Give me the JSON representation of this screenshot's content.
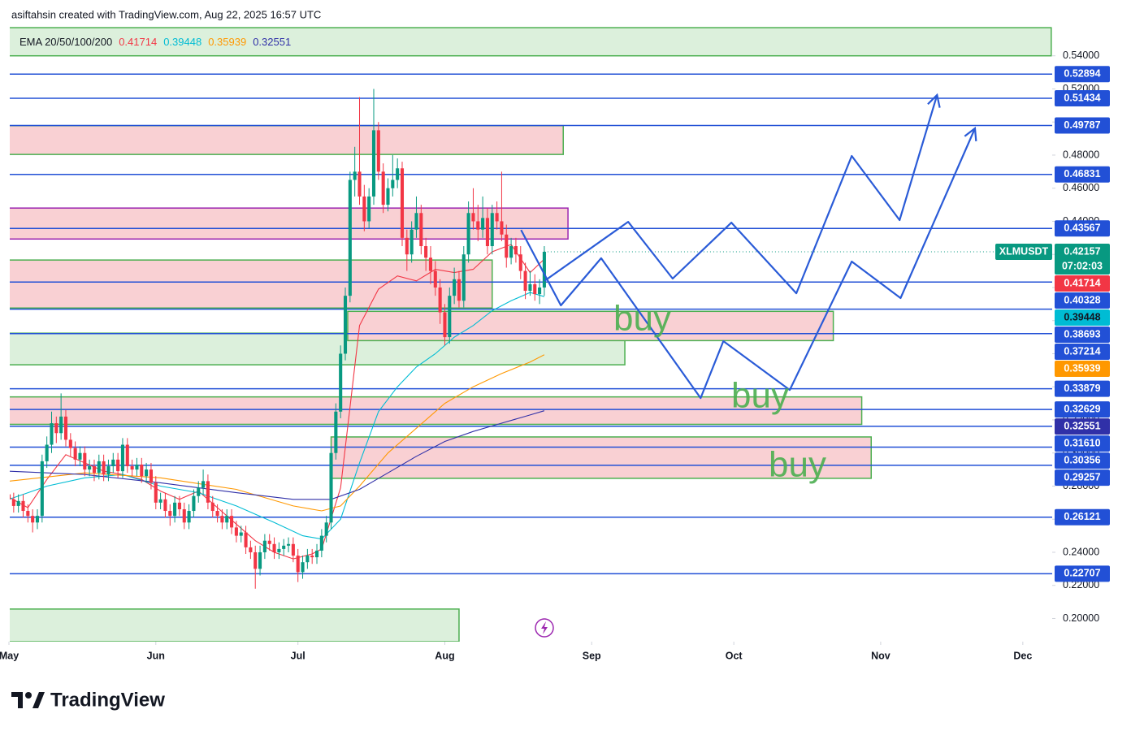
{
  "header": "asiftahsin created with TradingView.com, Aug 22, 2025 16:57 UTC",
  "logo": "TradingView",
  "chart_data": {
    "type": "candlestick",
    "symbol": "XLMUSDT",
    "countdown": "07:02:03",
    "indicator": "EMA 20/50/100/200",
    "color_up": "#089981",
    "color_down": "#f23645",
    "open": [
      0.275,
      0.272,
      0.268,
      0.271,
      0.265,
      0.262,
      0.258,
      0.262,
      0.295,
      0.305,
      0.318,
      0.312,
      0.322,
      0.308,
      0.303,
      0.296,
      0.3,
      0.29,
      0.292,
      0.288,
      0.295,
      0.287,
      0.292,
      0.296,
      0.289,
      0.305,
      0.292,
      0.29,
      0.293,
      0.286,
      0.29,
      0.282,
      0.27,
      0.272,
      0.265,
      0.262,
      0.27,
      0.266,
      0.258,
      0.265,
      0.274,
      0.279,
      0.283,
      0.27,
      0.265,
      0.262,
      0.258,
      0.262,
      0.255,
      0.25,
      0.252,
      0.243,
      0.24,
      0.23,
      0.24,
      0.247,
      0.245,
      0.24,
      0.242,
      0.244,
      0.245,
      0.238,
      0.228,
      0.234,
      0.238,
      0.237,
      0.241,
      0.25,
      0.258,
      0.3,
      0.325,
      0.36,
      0.395,
      0.465,
      0.47,
      0.455,
      0.44,
      0.455,
      0.495,
      0.47,
      0.45,
      0.46,
      0.465,
      0.472,
      0.43,
      0.42,
      0.435,
      0.445,
      0.425,
      0.418,
      0.41,
      0.4,
      0.385,
      0.37,
      0.395,
      0.405,
      0.392,
      0.42,
      0.445,
      0.44,
      0.435,
      0.442,
      0.425,
      0.445,
      0.44,
      0.432,
      0.418,
      0.425,
      0.42,
      0.41,
      0.398,
      0.402,
      0.396,
      0.4
    ],
    "high": [
      0.279,
      0.276,
      0.275,
      0.275,
      0.269,
      0.266,
      0.266,
      0.299,
      0.31,
      0.325,
      0.322,
      0.336,
      0.326,
      0.312,
      0.307,
      0.304,
      0.304,
      0.296,
      0.296,
      0.299,
      0.299,
      0.296,
      0.3,
      0.3,
      0.309,
      0.309,
      0.296,
      0.297,
      0.297,
      0.294,
      0.294,
      0.286,
      0.276,
      0.276,
      0.269,
      0.274,
      0.274,
      0.27,
      0.269,
      0.278,
      0.283,
      0.29,
      0.287,
      0.274,
      0.269,
      0.266,
      0.266,
      0.266,
      0.259,
      0.256,
      0.256,
      0.247,
      0.244,
      0.244,
      0.251,
      0.251,
      0.249,
      0.246,
      0.248,
      0.249,
      0.249,
      0.242,
      0.238,
      0.242,
      0.242,
      0.245,
      0.254,
      0.262,
      0.304,
      0.33,
      0.365,
      0.4,
      0.47,
      0.485,
      0.515,
      0.462,
      0.46,
      0.52,
      0.5,
      0.475,
      0.466,
      0.48,
      0.478,
      0.476,
      0.435,
      0.44,
      0.455,
      0.45,
      0.43,
      0.425,
      0.416,
      0.405,
      0.39,
      0.4,
      0.412,
      0.41,
      0.425,
      0.452,
      0.46,
      0.45,
      0.455,
      0.448,
      0.45,
      0.452,
      0.47,
      0.438,
      0.43,
      0.43,
      0.425,
      0.415,
      0.41,
      0.408,
      0.405,
      0.425
    ],
    "low": [
      0.268,
      0.264,
      0.264,
      0.261,
      0.258,
      0.252,
      0.254,
      0.258,
      0.291,
      0.3,
      0.306,
      0.308,
      0.304,
      0.298,
      0.292,
      0.292,
      0.286,
      0.286,
      0.283,
      0.284,
      0.283,
      0.283,
      0.288,
      0.285,
      0.285,
      0.288,
      0.286,
      0.286,
      0.282,
      0.282,
      0.278,
      0.266,
      0.266,
      0.261,
      0.256,
      0.258,
      0.262,
      0.254,
      0.254,
      0.261,
      0.27,
      0.275,
      0.266,
      0.261,
      0.258,
      0.254,
      0.254,
      0.251,
      0.246,
      0.246,
      0.239,
      0.236,
      0.218,
      0.226,
      0.236,
      0.241,
      0.236,
      0.236,
      0.238,
      0.24,
      0.234,
      0.222,
      0.224,
      0.23,
      0.233,
      0.233,
      0.237,
      0.246,
      0.254,
      0.296,
      0.321,
      0.356,
      0.391,
      0.455,
      0.45,
      0.434,
      0.436,
      0.45,
      0.465,
      0.445,
      0.446,
      0.455,
      0.46,
      0.425,
      0.41,
      0.415,
      0.43,
      0.42,
      0.41,
      0.402,
      0.395,
      0.378,
      0.365,
      0.366,
      0.39,
      0.388,
      0.388,
      0.415,
      0.435,
      0.428,
      0.43,
      0.42,
      0.42,
      0.435,
      0.428,
      0.412,
      0.414,
      0.415,
      0.405,
      0.393,
      0.395,
      0.392,
      0.39,
      0.395
    ],
    "close": [
      0.272,
      0.268,
      0.271,
      0.265,
      0.262,
      0.258,
      0.262,
      0.295,
      0.305,
      0.318,
      0.312,
      0.322,
      0.308,
      0.303,
      0.296,
      0.3,
      0.29,
      0.292,
      0.288,
      0.295,
      0.287,
      0.292,
      0.296,
      0.289,
      0.305,
      0.292,
      0.29,
      0.293,
      0.286,
      0.29,
      0.282,
      0.27,
      0.272,
      0.265,
      0.262,
      0.27,
      0.266,
      0.258,
      0.265,
      0.274,
      0.279,
      0.283,
      0.27,
      0.265,
      0.262,
      0.258,
      0.262,
      0.255,
      0.25,
      0.252,
      0.243,
      0.24,
      0.23,
      0.24,
      0.247,
      0.245,
      0.24,
      0.242,
      0.244,
      0.245,
      0.238,
      0.228,
      0.234,
      0.238,
      0.237,
      0.241,
      0.25,
      0.258,
      0.3,
      0.325,
      0.36,
      0.395,
      0.465,
      0.47,
      0.455,
      0.44,
      0.455,
      0.495,
      0.47,
      0.45,
      0.46,
      0.465,
      0.472,
      0.43,
      0.42,
      0.435,
      0.445,
      0.425,
      0.418,
      0.41,
      0.4,
      0.385,
      0.37,
      0.395,
      0.405,
      0.392,
      0.42,
      0.445,
      0.44,
      0.435,
      0.442,
      0.425,
      0.445,
      0.44,
      0.432,
      0.418,
      0.425,
      0.42,
      0.41,
      0.398,
      0.402,
      0.396,
      0.4,
      0.42157
    ],
    "series": [
      {
        "color": "#f23645",
        "x": [
          0,
          4,
          8,
          12,
          16,
          20,
          24,
          28,
          32,
          36,
          40,
          44,
          48,
          52,
          56,
          60,
          64,
          66,
          70,
          74,
          78,
          82,
          86,
          90,
          94,
          98,
          102,
          106,
          110,
          113
        ],
        "values": [
          0.2733,
          0.267,
          0.284,
          0.299,
          0.294,
          0.289,
          0.287,
          0.284,
          0.277,
          0.272,
          0.277,
          0.267,
          0.257,
          0.247,
          0.24,
          0.236,
          0.239,
          0.242,
          0.279,
          0.377,
          0.399,
          0.407,
          0.404,
          0.411,
          0.409,
          0.411,
          0.4216,
          0.426,
          0.409,
          0.41714
        ]
      },
      {
        "color": "#00bcd4",
        "x": [
          0,
          8,
          16,
          24,
          32,
          40,
          48,
          56,
          62,
          66,
          70,
          74,
          78,
          82,
          86,
          90,
          94,
          98,
          102,
          106,
          110,
          113
        ],
        "values": [
          0.272,
          0.28,
          0.285,
          0.287,
          0.28,
          0.276,
          0.268,
          0.258,
          0.25,
          0.248,
          0.26,
          0.294,
          0.325,
          0.34,
          0.352,
          0.36,
          0.37,
          0.377,
          0.386,
          0.392,
          0.397,
          0.39448
        ]
      },
      {
        "color": "#ff9800",
        "x": [
          0,
          16,
          32,
          48,
          60,
          66,
          70,
          74,
          80,
          86,
          92,
          98,
          104,
          110,
          113
        ],
        "values": [
          0.283,
          0.288,
          0.285,
          0.278,
          0.268,
          0.265,
          0.268,
          0.28,
          0.3,
          0.315,
          0.33,
          0.34,
          0.348,
          0.355,
          0.35939
        ]
      },
      {
        "color": "#3030a8",
        "x": [
          0,
          16,
          32,
          48,
          60,
          68,
          74,
          80,
          86,
          92,
          98,
          104,
          110,
          113
        ],
        "values": [
          0.289,
          0.287,
          0.282,
          0.276,
          0.272,
          0.272,
          0.278,
          0.288,
          0.298,
          0.307,
          0.313,
          0.318,
          0.323,
          0.32551
        ]
      }
    ],
    "levels": [
      0.52894,
      0.51434,
      0.49787,
      0.46831,
      0.43567,
      0.40328,
      0.38693,
      0.37214,
      0.33879,
      0.32629,
      {
        "value": 0.3161,
        "label": "0.31610"
      },
      0.30356,
      0.29257,
      0.26121,
      0.22707
    ],
    "level_color": "#2250d6",
    "zones": [
      {
        "fill": "#dcf0dc",
        "border": "#4caf50",
        "x": [
          0,
          220
        ],
        "y": [
          0.54,
          0.557
        ]
      },
      {
        "fill": "#f9d0d3",
        "border": "#4caf50",
        "x": [
          0,
          117
        ],
        "y": [
          0.4804,
          0.4978
        ]
      },
      {
        "fill": "#f9d0d3",
        "border": "#9c27b0",
        "x": [
          0,
          118
        ],
        "y": [
          0.4293,
          0.448
        ]
      },
      {
        "fill": "#f9d0d3",
        "border": "#4caf50",
        "x": [
          0,
          102
        ],
        "y": [
          0.3876,
          0.4166
        ]
      },
      {
        "fill": "#dcf0dc",
        "border": "#4caf50",
        "x": [
          0,
          130
        ],
        "y": [
          0.3533,
          0.3724
        ]
      },
      {
        "fill": "#f9d0d3",
        "border": "#4caf50",
        "x": [
          71.5,
          174
        ],
        "y": [
          0.3679,
          0.3856
        ]
      },
      {
        "fill": "#f9d0d3",
        "border": "#4caf50",
        "x": [
          0,
          180
        ],
        "y": [
          0.3173,
          0.3339
        ]
      },
      {
        "fill": "#f9d0d3",
        "border": "#4caf50",
        "x": [
          68,
          182
        ],
        "y": [
          0.2847,
          0.3097
        ]
      },
      {
        "fill": "#dcf0dc",
        "border": "#4caf50",
        "x": [
          0,
          95
        ],
        "y": [
          0.186,
          0.2057
        ]
      }
    ],
    "projections": [
      {
        "color": "#2a5bd7",
        "x": [
          108.1,
          116.5,
          125.0,
          146.0,
          150.8,
          164.8,
          177.9,
          188.2,
          203.9
        ],
        "values": [
          0.4348,
          0.3892,
          0.4177,
          0.3332,
          0.3676,
          0.3381,
          0.4157,
          0.3936,
          0.4962
        ]
      },
      {
        "color": "#2a5bd7",
        "x": [
          113.0,
          130.7,
          140.1,
          152.5,
          166.2,
          177.9,
          188.0,
          195.9
        ],
        "values": [
          0.4039,
          0.4397,
          0.4054,
          0.4392,
          0.3965,
          0.4795,
          0.4407,
          0.5163
        ]
      }
    ],
    "annotations": [
      "buy",
      "buy",
      "buy"
    ],
    "annotation_color": "#4caf50",
    "ylim": [
      0.186,
      0.559
    ],
    "yticks": [
      {
        "value": 0.2,
        "label": "0.20000"
      },
      {
        "value": 0.22,
        "label": "0.22000"
      },
      {
        "value": 0.24,
        "label": "0.24000"
      },
      {
        "value": 0.26,
        "label": "0.26000"
      },
      {
        "value": 0.28,
        "label": "0.28000"
      },
      {
        "value": 0.3,
        "label": "0.30000"
      },
      {
        "value": 0.32,
        "label": "0.32000"
      },
      {
        "value": 0.34,
        "label": "0.34000"
      },
      {
        "value": 0.36,
        "label": "0.36000"
      },
      {
        "value": 0.38,
        "label": "0.38000"
      },
      {
        "value": 0.4,
        "label": "0.40000"
      },
      {
        "value": 0.42,
        "label": "0.42000"
      },
      {
        "value": 0.44,
        "label": "0.44000"
      },
      {
        "value": 0.46,
        "label": "0.46000"
      },
      {
        "value": 0.48,
        "label": "0.48000"
      },
      {
        "value": 0.5,
        "label": "0.50000"
      },
      {
        "value": 0.52,
        "label": "0.52000"
      },
      {
        "value": 0.54,
        "label": "0.54000"
      }
    ],
    "xlim": [
      0.17,
      220.2
    ],
    "xticks": [
      {
        "value": 0,
        "label": "May"
      },
      {
        "value": 31,
        "label": "Jun"
      },
      {
        "value": 61,
        "label": "Jul"
      },
      {
        "value": 92,
        "label": "Aug"
      },
      {
        "value": 123,
        "label": "Sep"
      },
      {
        "value": 153,
        "label": "Oct"
      },
      {
        "value": 184,
        "label": "Nov"
      },
      {
        "value": 214,
        "label": "Dec"
      }
    ]
  }
}
